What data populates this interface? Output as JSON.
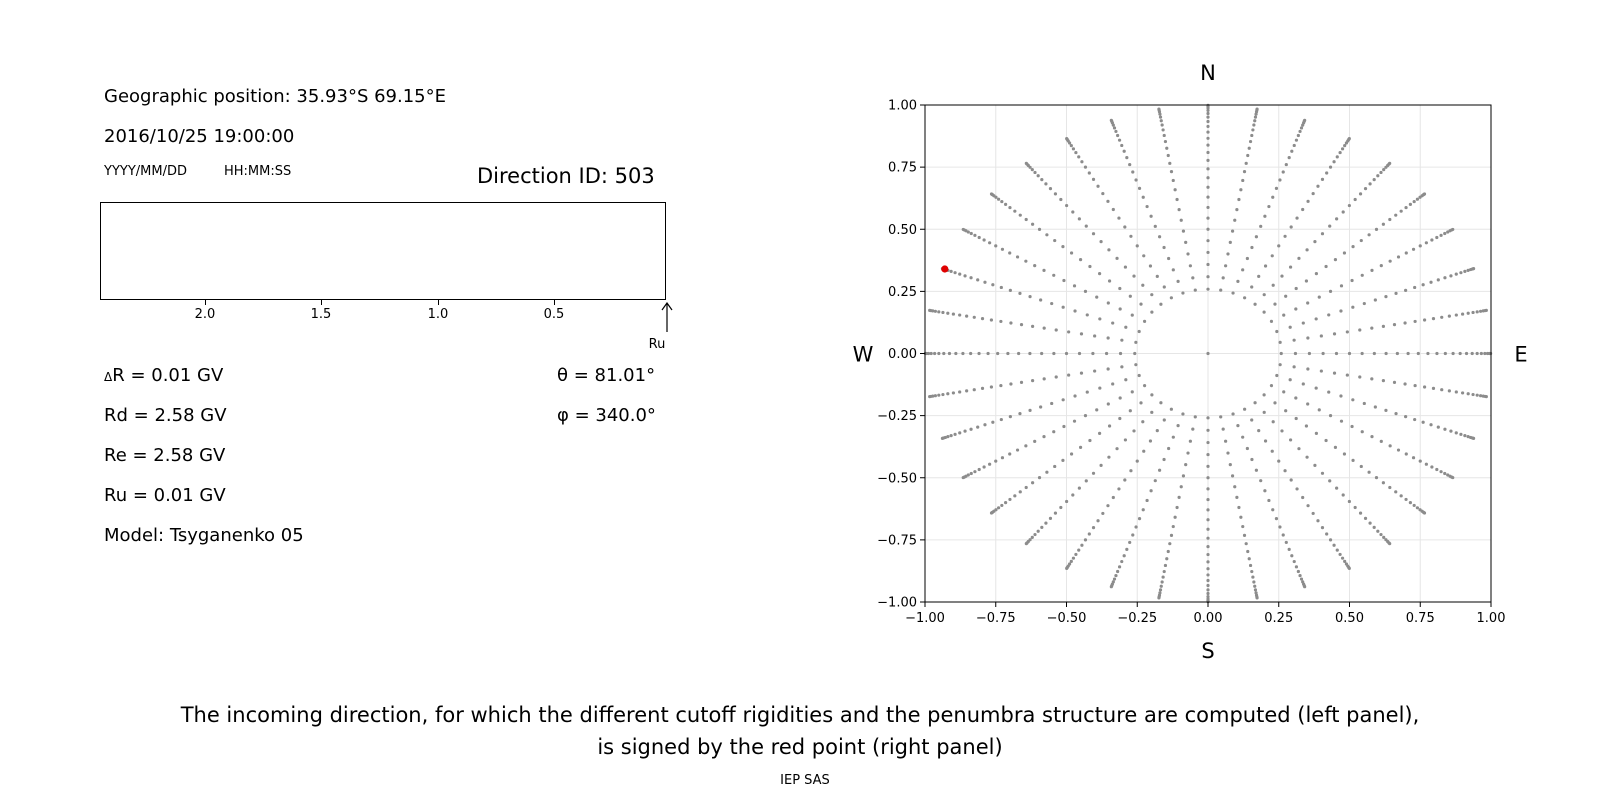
{
  "left_panel": {
    "geo_position": "Geographic position: 35.93°S 69.15°E",
    "datetime": "2016/10/25 19:00:00",
    "date_format": "YYYY/MM/DD",
    "time_format": "HH:MM:SS",
    "direction_id": "Direction ID: 503",
    "rigidity_ticks": [
      "2.0",
      "1.5",
      "1.0",
      "0.5"
    ],
    "ru_marker_label": "Ru",
    "delta_r_prefix": "Δ",
    "delta_r": "R = 0.01 GV",
    "rd": "Rd = 2.58 GV",
    "re": "Re = 2.58 GV",
    "ru": "Ru = 0.01 GV",
    "model": "Model: Tsyganenko 05",
    "theta": "θ = 81.01°",
    "phi": "φ = 340.0°"
  },
  "chart_data": {
    "type": "scatter",
    "compass": {
      "north": "N",
      "south": "S",
      "west": "W",
      "east": "E"
    },
    "xlim": [
      -1.0,
      1.0
    ],
    "ylim": [
      -1.0,
      1.0
    ],
    "xticks": [
      "−1.00",
      "−0.75",
      "−0.50",
      "−0.25",
      "0.00",
      "0.25",
      "0.50",
      "0.75",
      "1.00"
    ],
    "yticks": [
      "1.00",
      "0.75",
      "0.50",
      "0.25",
      "0.00",
      "−0.25",
      "−0.50",
      "−0.75",
      "−1.00"
    ],
    "grid": true,
    "series": [
      {
        "values": {
          "description_free": true,
          "directions": 36,
          "theta_steps": 25,
          "theta_min_deg": 15,
          "theta_max_deg": 87
        }
      },
      {
        "highlight_point": {
          "x": -0.93,
          "y": 0.34,
          "theta_deg": 81.01,
          "phi_deg": 340.0
        }
      }
    ],
    "colors": {
      "grid_points": "#8c8c8c",
      "highlight": "#e00000",
      "gridline": "#e6e6e6"
    }
  },
  "caption": {
    "line1": "The incoming direction, for which the different cutoff rigidities and the penumbra structure are computed (left panel),",
    "line2": "is signed by the red point (right panel)"
  },
  "footer": "IEP SAS"
}
